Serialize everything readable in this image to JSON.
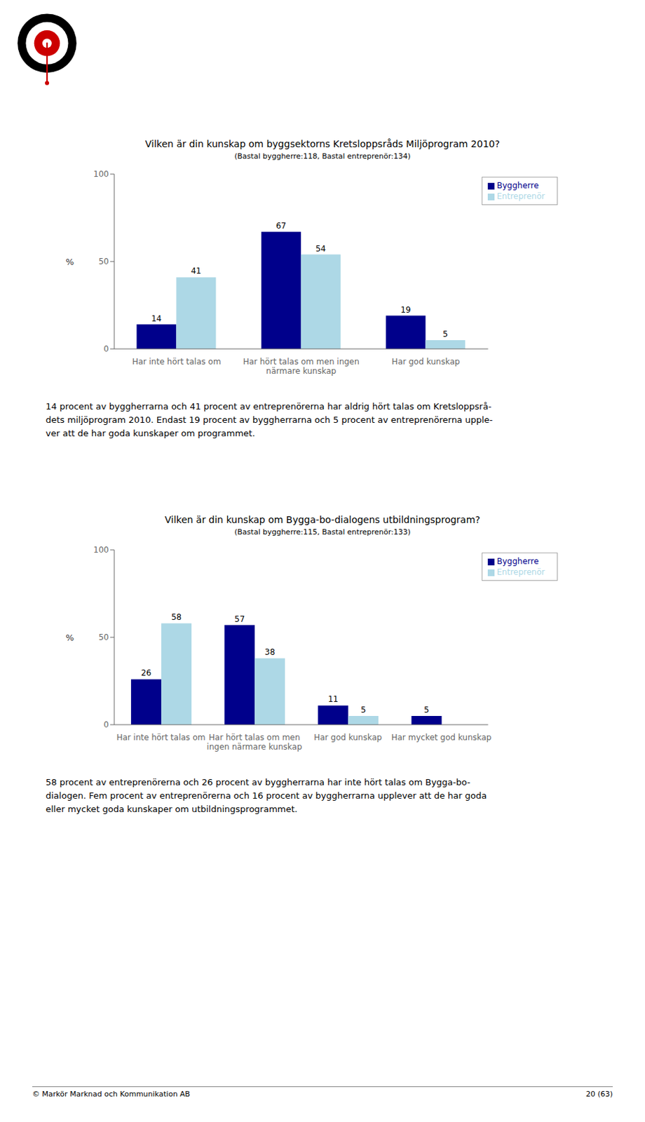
{
  "chart_data": [
    {
      "type": "bar",
      "title": "Vilken är din kunskap om byggsektorns Kretsloppsråds Miljöprogram 2010?",
      "subtitle": "(Bastal byggherre:118, Bastal entreprenör:134)",
      "categories": [
        "Har inte hört talas om",
        "Har hört talas om men ingen\nnärmare kunskap",
        "Har god kunskap"
      ],
      "series": [
        {
          "name": "Byggherre",
          "color": "#00008B",
          "values": [
            14,
            67,
            19
          ]
        },
        {
          "name": "Entreprenör",
          "color": "#ADD8E6",
          "values": [
            41,
            54,
            5
          ]
        }
      ],
      "ylabel": "%",
      "ylim": [
        0,
        100
      ],
      "yticks": [
        0,
        50,
        100
      ],
      "grid": false,
      "legend": "upper right",
      "data_labels": true,
      "annotations": [
        "14 procent av byggherrarna och 41 procent av entreprenörerna har aldrig hört talas om Kretsloppsrå-",
        "dets miljöprogram 2010. Endast 19 procent av byggherrarna och 5 procent av entreprenörerna upple-",
        "ver att de har goda kunskaper om programmet."
      ]
    },
    {
      "type": "bar",
      "title": "Vilken är din kunskap om Bygga-bo-dialogens utbildningsprogram?",
      "subtitle": "(Bastal byggherre:115, Bastal entreprenör:133)",
      "categories": [
        "Har inte hört talas om",
        "Har hört talas om men\ningen närmare kunskap",
        "Har god kunskap",
        "Har mycket god kunskap"
      ],
      "series": [
        {
          "name": "Byggherre",
          "color": "#00008B",
          "values": [
            26,
            57,
            11,
            5
          ]
        },
        {
          "name": "Entreprenör",
          "color": "#ADD8E6",
          "values": [
            58,
            38,
            5,
            0
          ]
        }
      ],
      "ylabel": "%",
      "ylim": [
        0,
        100
      ],
      "yticks": [
        0,
        50,
        100
      ],
      "grid": false,
      "legend": "upper right",
      "data_labels": true,
      "annotations": [
        "58 procent av entreprenörerna och 26 procent av byggherrarna har inte hört talas om Bygga-bo-",
        "dialogen. Fem procent av entreprenörerna och 16 procent av byggherrarna upplever att de har goda",
        "eller mycket goda kunskaper om utbildningsprogrammet."
      ]
    }
  ],
  "footer": "© Markör Marknad och Kommunikation AB",
  "page": "20 (63)"
}
